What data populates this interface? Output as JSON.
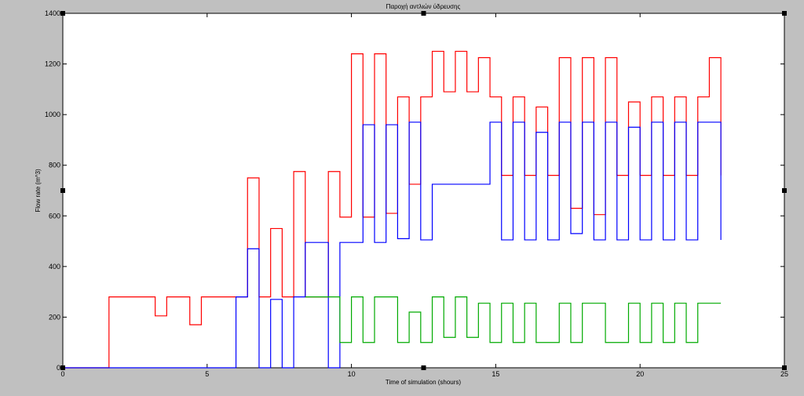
{
  "chart_data": {
    "type": "line",
    "title": "Παροχή αντλιών ύδρευσης",
    "xlabel": "Time of simulation (shours)",
    "ylabel": "Flow rate (m^3)",
    "xlim": [
      0,
      25
    ],
    "ylim": [
      0,
      1400
    ],
    "xticks": [
      0,
      5,
      10,
      15,
      20,
      25
    ],
    "yticks": [
      0,
      200,
      400,
      600,
      800,
      1000,
      1200,
      1400
    ],
    "grid": false,
    "step": true,
    "series": [
      {
        "color": "#ff0000",
        "x": [
          0,
          1.6,
          3.2,
          3.6,
          4.4,
          4.8,
          6.0,
          6.4,
          6.8,
          7.2,
          7.6,
          8.0,
          8.4,
          9.2,
          9.6,
          10.0,
          10.4,
          10.8,
          11.2,
          11.6,
          12.0,
          12.4,
          12.8,
          13.2,
          13.6,
          14.0,
          14.4,
          14.8,
          15.2,
          15.6,
          16.0,
          16.4,
          16.8,
          17.2,
          17.6,
          18.0,
          18.4,
          18.8,
          19.2,
          19.6,
          20.0,
          20.4,
          20.8,
          21.2,
          21.6,
          22.0,
          22.4,
          22.8
        ],
        "y": [
          0,
          280,
          205,
          280,
          170,
          280,
          280,
          750,
          280,
          550,
          280,
          775,
          280,
          775,
          595,
          1240,
          595,
          1240,
          610,
          1070,
          725,
          1070,
          1250,
          1090,
          1250,
          1090,
          1225,
          1070,
          760,
          1070,
          760,
          1030,
          760,
          1225,
          630,
          1225,
          605,
          1225,
          760,
          1050,
          760,
          1070,
          760,
          1070,
          760,
          1070,
          1225,
          760
        ]
      },
      {
        "color": "#0000ff",
        "x": [
          0,
          6.0,
          6.4,
          6.8,
          7.2,
          7.6,
          8.0,
          8.4,
          9.2,
          9.6,
          10.0,
          10.4,
          10.8,
          11.2,
          11.6,
          12.0,
          12.4,
          12.8,
          14.8,
          15.2,
          15.6,
          16.0,
          16.4,
          16.8,
          17.2,
          17.6,
          18.0,
          18.4,
          18.8,
          19.2,
          19.6,
          20.0,
          20.4,
          20.8,
          21.2,
          21.6,
          22.0,
          22.4,
          22.8
        ],
        "y": [
          0,
          280,
          470,
          0,
          270,
          0,
          280,
          495,
          0,
          495,
          495,
          960,
          495,
          960,
          510,
          970,
          505,
          725,
          970,
          505,
          970,
          505,
          930,
          505,
          970,
          530,
          970,
          505,
          970,
          505,
          950,
          505,
          970,
          505,
          970,
          505,
          970,
          970,
          505
        ]
      },
      {
        "color": "#00aa00",
        "x": [
          8.4,
          9.2,
          9.6,
          10.0,
          10.4,
          10.8,
          11.6,
          12.0,
          12.4,
          12.8,
          13.2,
          13.6,
          14.0,
          14.4,
          14.8,
          15.2,
          15.6,
          16.0,
          16.4,
          17.2,
          17.6,
          18.0,
          18.8,
          19.6,
          20.0,
          20.4,
          20.8,
          21.2,
          21.6,
          22.0,
          22.8
        ],
        "y": [
          280,
          280,
          100,
          280,
          100,
          280,
          100,
          220,
          100,
          280,
          120,
          280,
          120,
          255,
          100,
          255,
          100,
          255,
          100,
          255,
          100,
          255,
          100,
          255,
          100,
          255,
          100,
          255,
          100,
          255,
          255
        ]
      }
    ]
  }
}
